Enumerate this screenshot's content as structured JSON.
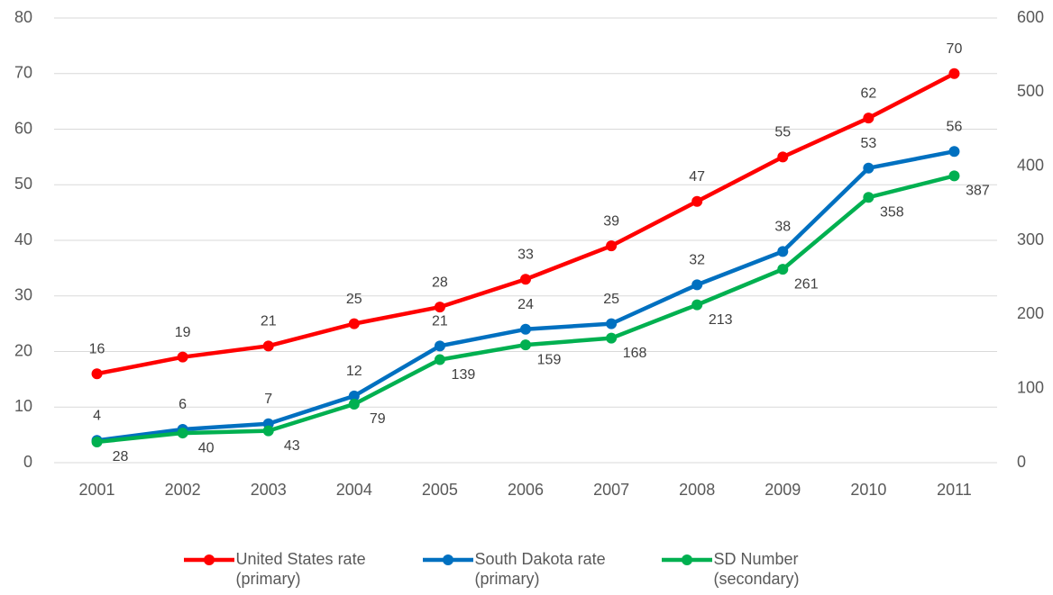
{
  "chart_data": {
    "type": "line",
    "categories": [
      "2001",
      "2002",
      "2003",
      "2004",
      "2005",
      "2006",
      "2007",
      "2008",
      "2009",
      "2010",
      "2011"
    ],
    "series": [
      {
        "name": "United States rate (primary)",
        "color": "#ff0000",
        "values": [
          16,
          19,
          21,
          25,
          28,
          33,
          39,
          47,
          55,
          62,
          70
        ]
      },
      {
        "name": "South Dakota rate (primary)",
        "color": "#0070c0",
        "values": [
          4,
          6,
          7,
          12,
          21,
          24,
          25,
          32,
          38,
          53,
          56
        ]
      },
      {
        "name": "SD Number (secondary)",
        "color": "#00b050",
        "axis": "y2",
        "values": [
          28,
          40,
          43,
          79,
          139,
          159,
          168,
          213,
          261,
          358,
          387
        ]
      }
    ],
    "ylim": [
      0,
      80
    ],
    "yticks": [
      0,
      10,
      20,
      30,
      40,
      50,
      60,
      70,
      80
    ],
    "y2lim": [
      0,
      600
    ],
    "y2ticks": [
      0,
      100,
      200,
      300,
      400,
      500,
      600
    ],
    "grid": true,
    "legend": "bottom"
  }
}
